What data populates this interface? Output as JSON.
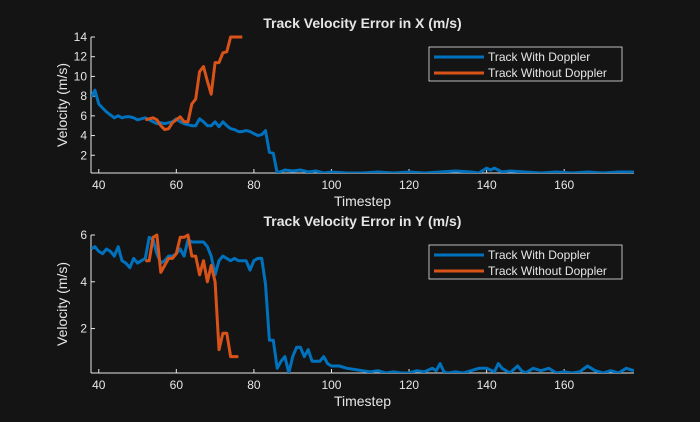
{
  "chart_data": [
    {
      "type": "line",
      "title": "Track Velocity Error in X (m/s)",
      "xlabel": "Timestep",
      "ylabel": "Velocity (m/s)",
      "xlim": [
        38,
        178
      ],
      "ylim": [
        0.2,
        14
      ],
      "xticks": [
        40,
        60,
        80,
        100,
        120,
        140,
        160
      ],
      "yticks": [
        2,
        4,
        6,
        8,
        10,
        12,
        14
      ],
      "grid": false,
      "legend_position": "top-right",
      "series": [
        {
          "name": "Track With Doppler",
          "color": "#0072bd",
          "x": [
            38,
            39,
            40,
            41,
            42,
            43,
            44,
            45,
            46,
            47,
            48,
            49,
            50,
            51,
            52,
            53,
            54,
            55,
            56,
            57,
            58,
            59,
            60,
            61,
            62,
            63,
            64,
            65,
            66,
            67,
            68,
            69,
            70,
            71,
            72,
            73,
            74,
            75,
            76,
            77,
            78,
            79,
            80,
            81,
            82,
            83,
            84,
            85,
            86,
            88,
            90,
            92,
            94,
            96,
            98,
            100,
            104,
            108,
            112,
            116,
            120,
            124,
            128,
            132,
            136,
            138,
            140,
            141,
            142,
            144,
            146,
            150,
            154,
            158,
            162,
            166,
            170,
            174,
            178
          ],
          "y": [
            7.9,
            8.6,
            7.2,
            6.8,
            6.4,
            6.1,
            5.8,
            6.0,
            5.8,
            5.9,
            5.9,
            5.8,
            5.6,
            5.7,
            5.8,
            5.6,
            5.4,
            5.2,
            5.3,
            5.2,
            5.3,
            5.4,
            5.7,
            5.4,
            5.2,
            5.1,
            5.0,
            5.0,
            5.7,
            5.4,
            5.0,
            5.0,
            5.4,
            4.9,
            5.4,
            5.0,
            4.7,
            4.6,
            4.4,
            4.4,
            4.5,
            4.4,
            4.2,
            4.0,
            4.1,
            4.5,
            2.3,
            2.2,
            0.2,
            0.5,
            0.4,
            0.5,
            0.3,
            0.4,
            0.2,
            0.3,
            0.2,
            0.2,
            0.3,
            0.2,
            0.3,
            0.2,
            0.3,
            0.4,
            0.3,
            0.2,
            0.7,
            0.5,
            0.7,
            0.3,
            0.4,
            0.3,
            0.2,
            0.3,
            0.2,
            0.3,
            0.2,
            0.3,
            0.3
          ]
        },
        {
          "name": "Track Without Doppler",
          "color": "#d95319",
          "x": [
            52,
            53,
            54,
            55,
            56,
            57,
            58,
            59,
            60,
            61,
            62,
            63,
            64,
            65,
            66,
            67,
            68,
            69,
            70,
            71,
            72,
            73,
            74,
            75,
            76,
            77
          ],
          "y": [
            5.6,
            5.7,
            5.8,
            5.6,
            5.0,
            4.6,
            4.7,
            5.3,
            5.6,
            5.9,
            5.4,
            5.4,
            7.2,
            7.7,
            10.5,
            11.0,
            9.5,
            8.2,
            11.4,
            11.4,
            12.4,
            12.5,
            14,
            14,
            14,
            14
          ]
        }
      ]
    },
    {
      "type": "line",
      "title": "Track Velocity Error in Y (m/s)",
      "xlabel": "Timestep",
      "ylabel": "Velocity (m/s)",
      "xlim": [
        38,
        178
      ],
      "ylim": [
        0.1,
        6
      ],
      "xticks": [
        40,
        60,
        80,
        100,
        120,
        140,
        160
      ],
      "yticks": [
        2,
        4,
        6
      ],
      "grid": false,
      "legend_position": "top-right",
      "series": [
        {
          "name": "Track With Doppler",
          "color": "#0072bd",
          "x": [
            38,
            39,
            40,
            41,
            42,
            43,
            44,
            45,
            46,
            47,
            48,
            49,
            50,
            51,
            52,
            53,
            54,
            55,
            56,
            57,
            58,
            59,
            60,
            61,
            62,
            63,
            64,
            65,
            66,
            67,
            68,
            69,
            70,
            71,
            72,
            73,
            74,
            75,
            76,
            77,
            78,
            79,
            80,
            81,
            82,
            83,
            84,
            85,
            86,
            87,
            88,
            89,
            90,
            91,
            92,
            93,
            94,
            95,
            96,
            97,
            98,
            99,
            100,
            101,
            102,
            104,
            106,
            108,
            110,
            112,
            114,
            116,
            118,
            120,
            122,
            124,
            126,
            127,
            128,
            129,
            130,
            132,
            134,
            136,
            138,
            140,
            142,
            143,
            144,
            145,
            146,
            148,
            149,
            150,
            152,
            154,
            156,
            158,
            160,
            162,
            164,
            166,
            168,
            170,
            172,
            174,
            176,
            178
          ],
          "y": [
            5.4,
            5.5,
            5.3,
            5.2,
            5.4,
            5.3,
            5.1,
            5.5,
            4.9,
            4.8,
            4.6,
            5.0,
            4.8,
            4.9,
            5.0,
            5.9,
            5.8,
            5.2,
            4.8,
            4.9,
            5.1,
            5.1,
            5.2,
            5.4,
            5.1,
            5.8,
            5.7,
            5.7,
            5.7,
            5.7,
            5.5,
            5.1,
            4.3,
            4.9,
            5.1,
            5.0,
            4.9,
            5.0,
            4.9,
            4.9,
            4.9,
            4.5,
            4.9,
            5.0,
            5.0,
            3.9,
            1.5,
            1.5,
            0.3,
            0.6,
            0.8,
            0.1,
            0.8,
            1.2,
            1.2,
            0.8,
            1.1,
            0.6,
            0.6,
            0.6,
            0.8,
            0.5,
            0.4,
            0.4,
            0.4,
            0.3,
            0.25,
            0.2,
            0.15,
            0.2,
            0.1,
            0.15,
            0.1,
            0.1,
            0.2,
            0.15,
            0.3,
            0.2,
            0.5,
            0.15,
            0.1,
            0.15,
            0.1,
            0.2,
            0.3,
            0.3,
            0.15,
            0.5,
            0.3,
            0.2,
            0.1,
            0.4,
            0.2,
            0.1,
            0.3,
            0.2,
            0.3,
            0.1,
            0.15,
            0.1,
            0.15,
            0.4,
            0.2,
            0.1,
            0.2,
            0.1,
            0.3,
            0.2
          ]
        },
        {
          "name": "Track Without Doppler",
          "color": "#d95319",
          "x": [
            52,
            53,
            54,
            55,
            56,
            57,
            58,
            59,
            60,
            61,
            62,
            63,
            64,
            65,
            66,
            67,
            68,
            69,
            70,
            71,
            72,
            73,
            74,
            75,
            76
          ],
          "y": [
            4.9,
            4.9,
            5.9,
            6.0,
            4.4,
            4.7,
            5.0,
            5.0,
            5.2,
            5.9,
            5.9,
            6.0,
            5.1,
            5.1,
            4.3,
            4.9,
            4.0,
            4.7,
            4.0,
            1.1,
            1.8,
            1.8,
            0.8,
            0.8,
            0.8
          ]
        }
      ]
    }
  ]
}
